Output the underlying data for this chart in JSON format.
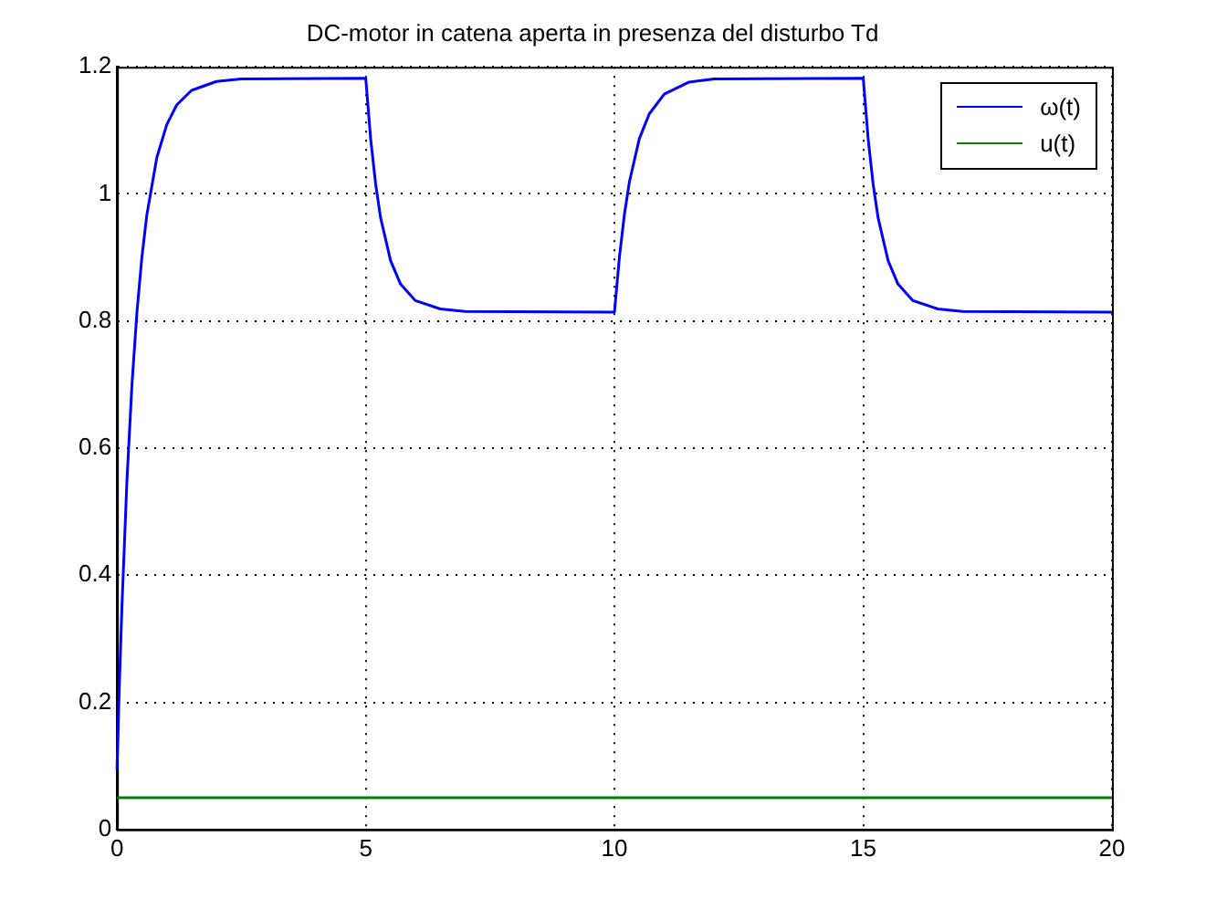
{
  "chart_data": {
    "type": "line",
    "title": "DC-motor in catena aperta in presenza del disturbo Td",
    "x": [
      0,
      0.05,
      0.1,
      0.2,
      0.3,
      0.4,
      0.5,
      0.6,
      0.8,
      1.0,
      1.2,
      1.5,
      2.0,
      2.5,
      5,
      5.1,
      5.2,
      5.3,
      5.5,
      5.7,
      6,
      6.5,
      7,
      10,
      10.1,
      10.2,
      10.3,
      10.5,
      10.7,
      11,
      11.5,
      12,
      15,
      15.1,
      15.2,
      15.3,
      15.5,
      15.7,
      16,
      16.5,
      17,
      20
    ],
    "series": [
      {
        "name": "ω(t)",
        "color": "#0000ff",
        "values": [
          0.094,
          0.232,
          0.352,
          0.549,
          0.699,
          0.813,
          0.9,
          0.967,
          1.057,
          1.109,
          1.14,
          1.163,
          1.177,
          1.181,
          1.182,
          1.086,
          1.015,
          0.962,
          0.895,
          0.858,
          0.832,
          0.819,
          0.815,
          0.814,
          0.901,
          0.968,
          1.019,
          1.087,
          1.126,
          1.157,
          1.176,
          1.181,
          1.182,
          1.086,
          1.015,
          0.962,
          0.895,
          0.858,
          0.832,
          0.819,
          0.815,
          0.814
        ]
      },
      {
        "name": "u(t)",
        "color": "#008000",
        "values": [
          0.05,
          0.05,
          0.05,
          0.05,
          0.05,
          0.05,
          0.05,
          0.05,
          0.05,
          0.05,
          0.05,
          0.05,
          0.05,
          0.05,
          0.05,
          0.05,
          0.05,
          0.05,
          0.05,
          0.05,
          0.05,
          0.05,
          0.05,
          0.05,
          0.05,
          0.05,
          0.05,
          0.05,
          0.05,
          0.05,
          0.05,
          0.05,
          0.05,
          0.05,
          0.05,
          0.05,
          0.05,
          0.05,
          0.05,
          0.05,
          0.05,
          0.05
        ]
      }
    ],
    "xlim": [
      0,
      20
    ],
    "xticks": [
      0,
      5,
      10,
      15,
      20
    ],
    "ylim": [
      0,
      1.2
    ],
    "yticks": [
      0,
      0.2,
      0.4,
      0.6,
      0.8,
      1,
      1.2
    ],
    "grid": true,
    "legend": "top right",
    "marker": "none",
    "line_style": "solid"
  }
}
